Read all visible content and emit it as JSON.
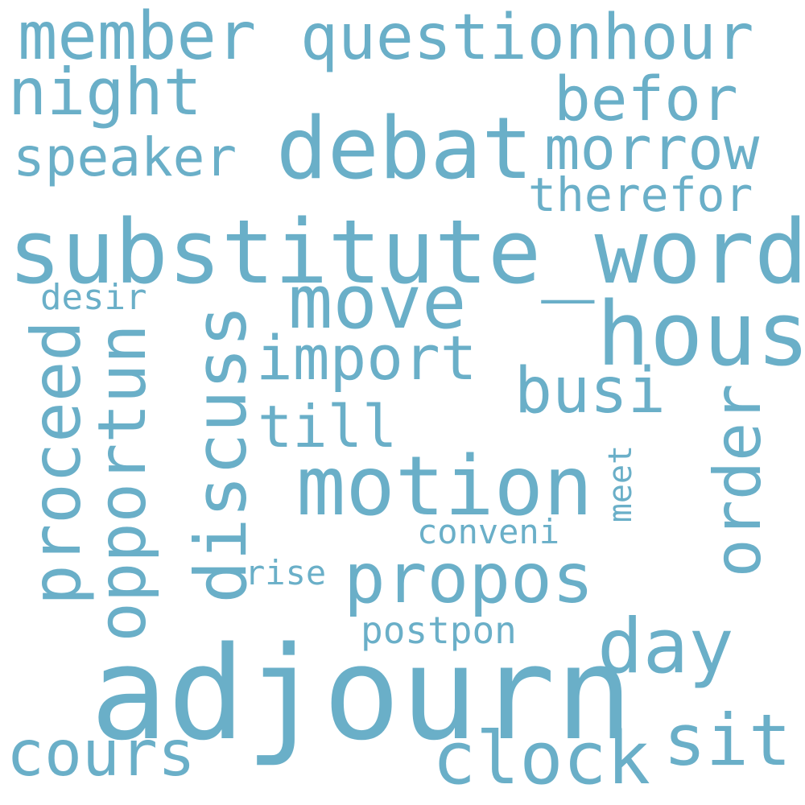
{
  "color": "#6aafc8",
  "words": [
    {
      "key": "adjourn",
      "text": "adjourn"
    },
    {
      "key": "substitute_word",
      "text": "substitute_word"
    },
    {
      "key": "debat",
      "text": "debat"
    },
    {
      "key": "motion",
      "text": "motion"
    },
    {
      "key": "hous",
      "text": "hous"
    },
    {
      "key": "move",
      "text": "move"
    },
    {
      "key": "propos",
      "text": "propos"
    },
    {
      "key": "questionhour",
      "text": "questionhour"
    },
    {
      "key": "member",
      "text": "member"
    },
    {
      "key": "night",
      "text": "night"
    },
    {
      "key": "befor",
      "text": "befor"
    },
    {
      "key": "morrow",
      "text": "morrow"
    },
    {
      "key": "speaker",
      "text": "speaker"
    },
    {
      "key": "therefor",
      "text": "therefor"
    },
    {
      "key": "import",
      "text": "import"
    },
    {
      "key": "busi",
      "text": "busi"
    },
    {
      "key": "till",
      "text": "till"
    },
    {
      "key": "discuss",
      "text": "discuss"
    },
    {
      "key": "proceed",
      "text": "proceed"
    },
    {
      "key": "opportun",
      "text": "opportun"
    },
    {
      "key": "order",
      "text": "order"
    },
    {
      "key": "desir",
      "text": "desir"
    },
    {
      "key": "meet",
      "text": "meet"
    },
    {
      "key": "conveni",
      "text": "conveni"
    },
    {
      "key": "rise",
      "text": "rise"
    },
    {
      "key": "postpon",
      "text": "postpon"
    },
    {
      "key": "day",
      "text": "day"
    },
    {
      "key": "cours",
      "text": "cours"
    },
    {
      "key": "clock",
      "text": "clock"
    },
    {
      "key": "sit",
      "text": "sit"
    }
  ]
}
